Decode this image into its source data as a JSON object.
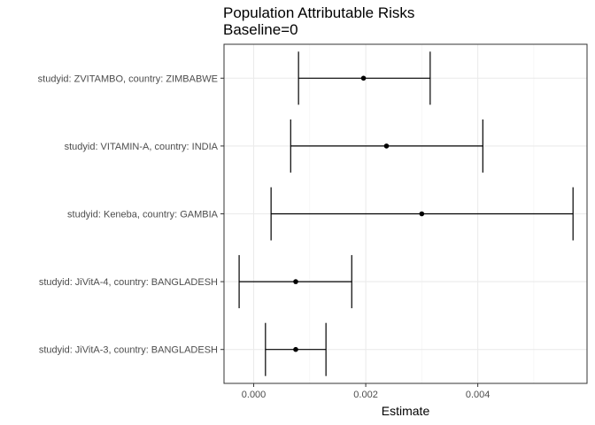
{
  "chart_data": {
    "type": "errorbar",
    "title": "Population Attributable Risks",
    "subtitle": "Baseline=0",
    "xlabel": "Estimate",
    "ylabel": "",
    "xlim": [
      -0.00053,
      0.00595
    ],
    "x_ticks": [
      0.0,
      0.002,
      0.004
    ],
    "x_tick_labels": [
      "0.000",
      "0.002",
      "0.004"
    ],
    "grid": true,
    "categories": [
      "studyid: ZVITAMBO, country: ZIMBABWE",
      "studyid: VITAMIN-A, country: INDIA",
      "studyid: Keneba, country: GAMBIA",
      "studyid: JiVitA-4, country: BANGLADESH",
      "studyid: JiVitA-3, country: BANGLADESH"
    ],
    "estimates": [
      0.00196,
      0.00237,
      0.003,
      0.00075,
      0.00075
    ],
    "lower": [
      0.0008,
      0.00066,
      0.00031,
      -0.00026,
      0.00021
    ],
    "upper": [
      0.00315,
      0.00409,
      0.0057,
      0.00175,
      0.00129
    ]
  }
}
